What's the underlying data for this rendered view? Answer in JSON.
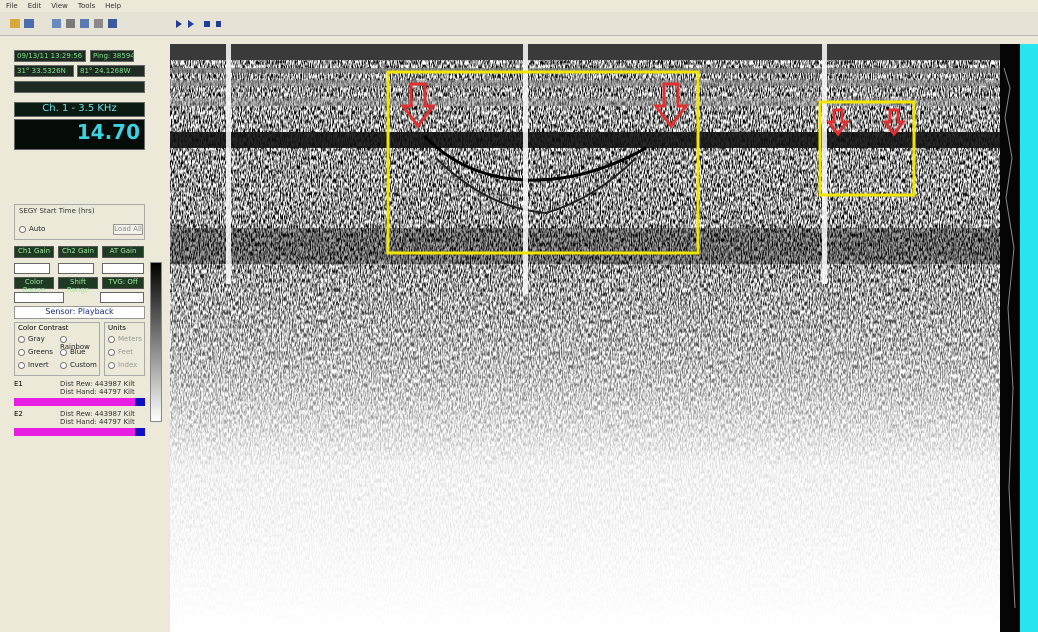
{
  "menu": [
    "File",
    "Edit",
    "View",
    "Tools",
    "Help"
  ],
  "status": {
    "date": "09/13/11 13:29:56",
    "ping": "Ping: 38594",
    "lat": "31° 33.5326N",
    "lon": "81° 24.1268W"
  },
  "channel": "Ch. 1 - 3.5 KHz",
  "depth": "14.70",
  "segy": {
    "title": "SEGY Start Time (hrs)",
    "option": "Auto",
    "button": "Load All"
  },
  "gains": [
    "Ch1 Gain",
    "Ch2 Gain",
    "AT Gain"
  ],
  "ranges": [
    "Color Range",
    "Shift Range",
    "TVG: Off"
  ],
  "sensor": "Sensor: Playback",
  "contrast": {
    "title": "Color Contrast",
    "options": [
      "Gray",
      "Rainbow",
      "Greens",
      "Blue",
      "Invert",
      "Custom"
    ]
  },
  "units": {
    "title": "Units",
    "options": [
      "Meters",
      "Feet",
      "Index"
    ]
  },
  "layers": [
    {
      "name": "E1",
      "line1": "Dist Rew: 443987 Kilt",
      "line2": "Dist Hand: 44797 Kilt"
    },
    {
      "name": "E2",
      "line1": "Dist Rew: 443987 Kilt",
      "line2": "Dist Hand: 44797 Kilt"
    }
  ]
}
